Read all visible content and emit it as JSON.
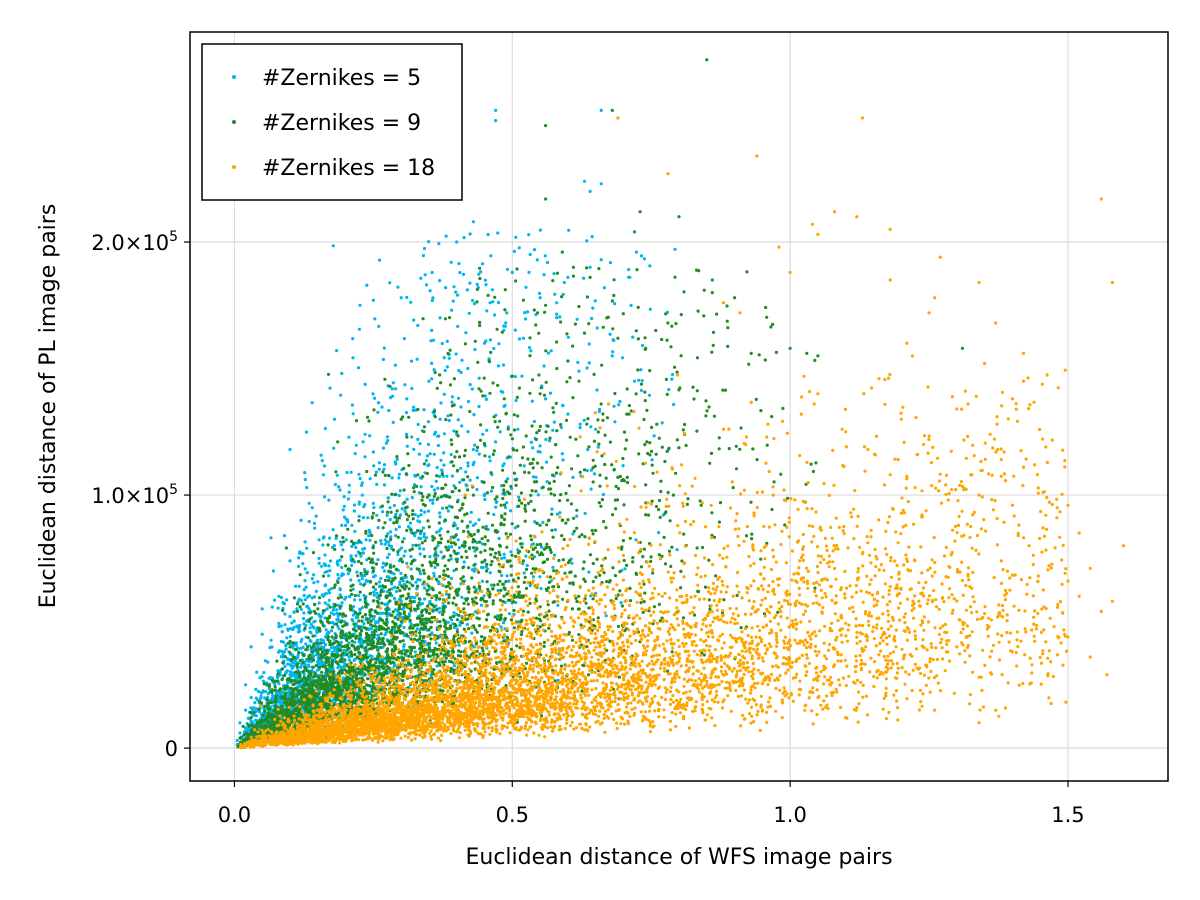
{
  "chart_data": {
    "type": "scatter",
    "xlabel": "Euclidean distance of WFS image pairs",
    "ylabel": "Euclidean distance of PL image pairs",
    "xlim": [
      -0.08,
      1.68
    ],
    "ylim": [
      -13000,
      283000
    ],
    "x_ticks": [
      {
        "value": 0.0,
        "label": "0.0"
      },
      {
        "value": 0.5,
        "label": "0.5"
      },
      {
        "value": 1.0,
        "label": "1.0"
      },
      {
        "value": 1.5,
        "label": "1.5"
      }
    ],
    "y_ticks": [
      {
        "value": 0,
        "label": "0",
        "exp": ""
      },
      {
        "value": 100000,
        "label": "1.0×10",
        "exp": "5"
      },
      {
        "value": 200000,
        "label": "2.0×10",
        "exp": "5"
      }
    ],
    "grid": true,
    "legend_position": "top-left",
    "series": [
      {
        "name": "#Zernikes = 5",
        "color": "#00b5f0",
        "points": [
          [
            0.47,
            252000
          ],
          [
            0.47,
            248000
          ],
          [
            0.66,
            252000
          ],
          [
            0.63,
            224000
          ],
          [
            0.66,
            223000
          ],
          [
            0.64,
            220000
          ],
          [
            0.43,
            208000
          ],
          [
            0.4,
            200000
          ],
          [
            0.39,
            192000
          ],
          [
            0.38,
            182000
          ],
          [
            0.3,
            178000
          ],
          [
            0.25,
            177000
          ],
          [
            0.54,
            197000
          ],
          [
            0.53,
            188000
          ],
          [
            0.66,
            193000
          ],
          [
            0.64,
            190000
          ],
          [
            0.5,
            188000
          ],
          [
            0.6,
            186000
          ],
          [
            0.55,
            178000
          ],
          [
            0.46,
            176000
          ],
          [
            0.49,
            172000
          ],
          [
            0.37,
            170000
          ],
          [
            0.33,
            167000
          ],
          [
            0.18,
            130000
          ],
          [
            0.1,
            118000
          ],
          [
            0.16,
            108000
          ],
          [
            0.13,
            103000
          ],
          [
            0.29,
            142000
          ],
          [
            0.35,
            145000
          ],
          [
            0.31,
            138000
          ],
          [
            0.42,
            150000
          ],
          [
            0.45,
            160000
          ],
          [
            0.52,
            162000
          ],
          [
            0.57,
            157000
          ],
          [
            0.62,
            149000
          ],
          [
            0.68,
            155000
          ],
          [
            0.72,
            145000
          ],
          [
            0.21,
            109000
          ],
          [
            0.25,
            117000
          ],
          [
            0.27,
            112000
          ],
          [
            0.33,
            122000
          ],
          [
            0.37,
            130000
          ],
          [
            0.4,
            124000
          ],
          [
            0.44,
            135000
          ],
          [
            0.48,
            141000
          ],
          [
            0.56,
            138000
          ],
          [
            0.6,
            132000
          ],
          [
            0.65,
            126000
          ],
          [
            0.09,
            84000
          ],
          [
            0.12,
            90000
          ],
          [
            0.14,
            95000
          ],
          [
            0.17,
            98000
          ],
          [
            0.19,
            102000
          ],
          [
            0.23,
            100000
          ],
          [
            0.27,
            104000
          ],
          [
            0.31,
            108000
          ],
          [
            0.35,
            112000
          ],
          [
            0.39,
            116000
          ],
          [
            0.43,
            118000
          ],
          [
            0.47,
            121000
          ],
          [
            0.51,
            126000
          ],
          [
            0.55,
            117000
          ],
          [
            0.07,
            70000
          ],
          [
            0.1,
            74000
          ],
          [
            0.13,
            79000
          ],
          [
            0.16,
            83000
          ],
          [
            0.2,
            88000
          ],
          [
            0.24,
            91000
          ],
          [
            0.28,
            95000
          ],
          [
            0.32,
            99000
          ],
          [
            0.36,
            102000
          ],
          [
            0.41,
            106000
          ],
          [
            0.45,
            100000
          ],
          [
            0.49,
            97000
          ],
          [
            0.05,
            55000
          ],
          [
            0.08,
            60000
          ],
          [
            0.11,
            64000
          ],
          [
            0.14,
            67000
          ],
          [
            0.17,
            72000
          ],
          [
            0.21,
            76000
          ],
          [
            0.25,
            80000
          ],
          [
            0.29,
            84000
          ],
          [
            0.34,
            87000
          ],
          [
            0.38,
            90000
          ],
          [
            0.43,
            88000
          ],
          [
            0.03,
            40000
          ],
          [
            0.05,
            45000
          ],
          [
            0.08,
            48000
          ],
          [
            0.1,
            52000
          ],
          [
            0.13,
            56000
          ],
          [
            0.16,
            60000
          ],
          [
            0.19,
            63000
          ],
          [
            0.23,
            67000
          ],
          [
            0.27,
            70000
          ],
          [
            0.31,
            73000
          ],
          [
            0.36,
            76000
          ],
          [
            0.02,
            25000
          ],
          [
            0.04,
            30000
          ],
          [
            0.06,
            34000
          ],
          [
            0.09,
            38000
          ],
          [
            0.12,
            42000
          ],
          [
            0.15,
            46000
          ],
          [
            0.18,
            49000
          ],
          [
            0.22,
            53000
          ],
          [
            0.26,
            56000
          ],
          [
            0.3,
            58000
          ],
          [
            0.01,
            10000
          ],
          [
            0.02,
            15000
          ],
          [
            0.03,
            20000
          ],
          [
            0.05,
            22000
          ],
          [
            0.07,
            26000
          ],
          [
            0.1,
            29000
          ],
          [
            0.14,
            32000
          ],
          [
            0.18,
            35000
          ],
          [
            0.22,
            39000
          ],
          [
            0.005,
            3000
          ],
          [
            0.01,
            6000
          ],
          [
            0.02,
            8000
          ]
        ],
        "cloud": {
          "count": 2600,
          "x_scale": 0.19,
          "x_min": 0.003,
          "x_max": 0.8,
          "slope_center": 210000,
          "slope_spread": 0.55,
          "y_max": 205000
        }
      },
      {
        "name": "#Zernikes = 9",
        "color": "#228b22",
        "points": [
          [
            0.85,
            272000
          ],
          [
            0.68,
            252000
          ],
          [
            0.56,
            246000
          ],
          [
            0.56,
            217000
          ],
          [
            0.73,
            212000
          ],
          [
            0.8,
            210000
          ],
          [
            0.72,
            204000
          ],
          [
            0.59,
            196000
          ],
          [
            0.61,
            190000
          ],
          [
            0.64,
            186000
          ],
          [
            0.86,
            185000
          ],
          [
            0.86,
            180000
          ],
          [
            0.9,
            178000
          ],
          [
            0.52,
            177000
          ],
          [
            0.56,
            175000
          ],
          [
            0.67,
            170000
          ],
          [
            0.78,
            168000
          ],
          [
            0.63,
            164000
          ],
          [
            0.69,
            162000
          ],
          [
            0.74,
            158000
          ],
          [
            0.93,
            156000
          ],
          [
            1.0,
            158000
          ],
          [
            1.03,
            156000
          ],
          [
            1.05,
            155000
          ],
          [
            1.31,
            158000
          ],
          [
            0.6,
            153000
          ],
          [
            0.58,
            150000
          ],
          [
            0.28,
            143000
          ],
          [
            0.3,
            130000
          ],
          [
            0.36,
            133000
          ],
          [
            0.44,
            142000
          ],
          [
            0.5,
            147000
          ],
          [
            0.55,
            140000
          ],
          [
            0.62,
            145000
          ],
          [
            0.66,
            136000
          ],
          [
            0.71,
            132000
          ],
          [
            0.76,
            128000
          ],
          [
            0.81,
            124000
          ],
          [
            0.4,
            125000
          ],
          [
            0.45,
            120000
          ],
          [
            0.52,
            119000
          ],
          [
            0.57,
            115000
          ],
          [
            0.63,
            110000
          ],
          [
            0.69,
            107000
          ],
          [
            0.74,
            104000
          ],
          [
            0.79,
            100000
          ],
          [
            0.84,
            96000
          ],
          [
            0.33,
            108000
          ],
          [
            0.38,
            104000
          ],
          [
            0.43,
            100000
          ],
          [
            0.48,
            96000
          ],
          [
            0.54,
            94000
          ],
          [
            0.59,
            90000
          ],
          [
            0.65,
            86000
          ],
          [
            0.7,
            82000
          ],
          [
            0.26,
            90000
          ],
          [
            0.31,
            86000
          ],
          [
            0.36,
            83000
          ],
          [
            0.41,
            80000
          ],
          [
            0.47,
            77000
          ],
          [
            0.52,
            74000
          ],
          [
            0.58,
            70000
          ],
          [
            0.2,
            72000
          ],
          [
            0.25,
            70000
          ],
          [
            0.3,
            67000
          ],
          [
            0.35,
            64000
          ],
          [
            0.4,
            61000
          ],
          [
            0.45,
            58000
          ],
          [
            0.15,
            55000
          ],
          [
            0.19,
            53000
          ],
          [
            0.24,
            51000
          ],
          [
            0.29,
            49000
          ],
          [
            0.34,
            47000
          ],
          [
            0.1,
            40000
          ],
          [
            0.14,
            38000
          ],
          [
            0.18,
            37000
          ],
          [
            0.23,
            36000
          ],
          [
            0.06,
            25000
          ],
          [
            0.09,
            24000
          ],
          [
            0.13,
            23000
          ],
          [
            0.03,
            12000
          ],
          [
            0.05,
            11000
          ],
          [
            0.01,
            4000
          ]
        ],
        "cloud": {
          "count": 3600,
          "x_scale": 0.26,
          "x_min": 0.005,
          "x_max": 1.05,
          "slope_center": 130000,
          "slope_spread": 0.55,
          "y_max": 190000
        }
      },
      {
        "name": "#Zernikes = 18",
        "color": "#ffa500",
        "points": [
          [
            0.69,
            249000
          ],
          [
            1.13,
            249000
          ],
          [
            0.94,
            234000
          ],
          [
            0.78,
            227000
          ],
          [
            1.56,
            217000
          ],
          [
            1.08,
            212000
          ],
          [
            1.12,
            210000
          ],
          [
            1.04,
            207000
          ],
          [
            1.05,
            203000
          ],
          [
            1.18,
            205000
          ],
          [
            0.98,
            198000
          ],
          [
            1.27,
            194000
          ],
          [
            1.0,
            188000
          ],
          [
            1.18,
            185000
          ],
          [
            1.34,
            184000
          ],
          [
            1.58,
            184000
          ],
          [
            1.26,
            178000
          ],
          [
            1.25,
            172000
          ],
          [
            1.37,
            168000
          ],
          [
            0.88,
            176000
          ],
          [
            0.91,
            172000
          ],
          [
            1.42,
            156000
          ],
          [
            1.21,
            160000
          ],
          [
            1.22,
            155000
          ],
          [
            1.35,
            152000
          ],
          [
            1.16,
            146000
          ],
          [
            1.42,
            145000
          ],
          [
            1.4,
            138000
          ],
          [
            1.32,
            136000
          ],
          [
            1.3,
            134000
          ],
          [
            1.46,
            119000
          ],
          [
            1.44,
            112000
          ],
          [
            1.42,
            111000
          ],
          [
            1.38,
            114000
          ],
          [
            1.36,
            124000
          ],
          [
            1.48,
            91000
          ],
          [
            1.52,
            85000
          ],
          [
            1.5,
            96000
          ],
          [
            1.6,
            80000
          ],
          [
            1.54,
            71000
          ],
          [
            1.5,
            66000
          ],
          [
            1.52,
            60000
          ],
          [
            1.58,
            58000
          ],
          [
            1.56,
            54000
          ],
          [
            1.5,
            44000
          ],
          [
            1.54,
            36000
          ],
          [
            1.57,
            29000
          ],
          [
            1.46,
            42000
          ],
          [
            1.4,
            38000
          ],
          [
            1.34,
            28000
          ],
          [
            1.3,
            40000
          ],
          [
            1.34,
            10000
          ],
          [
            1.12,
            16000
          ],
          [
            1.1,
            12000
          ],
          [
            1.26,
            15000
          ],
          [
            1.05,
            20000
          ],
          [
            0.95,
            15000
          ],
          [
            0.86,
            19000
          ],
          [
            1.2,
            130000
          ],
          [
            1.24,
            120000
          ],
          [
            1.14,
            118000
          ],
          [
            1.1,
            125000
          ],
          [
            1.05,
            140000
          ],
          [
            1.02,
            132000
          ],
          [
            0.96,
            128000
          ],
          [
            0.92,
            120000
          ],
          [
            0.88,
            126000
          ],
          [
            1.18,
            108000
          ],
          [
            1.28,
            104000
          ],
          [
            1.34,
            100000
          ],
          [
            1.4,
            96000
          ],
          [
            1.46,
            92000
          ],
          [
            1.43,
            80000
          ],
          [
            1.38,
            74000
          ],
          [
            1.32,
            68000
          ]
        ],
        "cloud": {
          "count": 6200,
          "x_scale": 0.5,
          "x_min": 0.01,
          "x_max": 1.5,
          "slope_center": 45000,
          "slope_spread": 0.55,
          "y_max": 150000
        }
      }
    ]
  }
}
